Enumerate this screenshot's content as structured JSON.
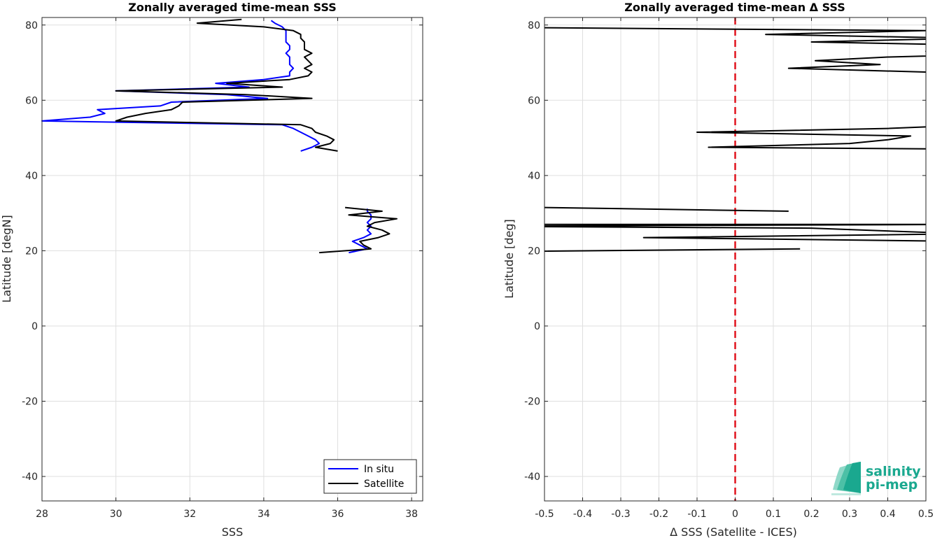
{
  "chart_data": [
    {
      "type": "line",
      "title": "Zonally averaged time-mean SSS",
      "xlabel": "SSS",
      "ylabel": "Latitude [degN]",
      "xlim": [
        28,
        38.3
      ],
      "ylim": [
        -46.5,
        82
      ],
      "xticks": [
        28,
        30,
        32,
        34,
        36,
        38
      ],
      "yticks": [
        -40,
        -20,
        0,
        20,
        40,
        60,
        80
      ],
      "grid": true,
      "legend_position": "bottom-right",
      "series": [
        {
          "name": "In situ",
          "color": "#0000ff",
          "segments": [
            [
              [
                34.2,
                81.2
              ],
              [
                34.3,
                80.5
              ],
              [
                34.5,
                79.5
              ],
              [
                34.6,
                78.5
              ],
              [
                34.6,
                77.5
              ],
              [
                34.6,
                76.5
              ],
              [
                34.6,
                75.5
              ],
              [
                34.7,
                74.5
              ],
              [
                34.7,
                73.5
              ],
              [
                34.6,
                72.5
              ],
              [
                34.7,
                71.5
              ],
              [
                34.7,
                70.5
              ],
              [
                34.7,
                69.5
              ],
              [
                34.8,
                68.5
              ],
              [
                34.7,
                67.5
              ],
              [
                34.7,
                66.5
              ],
              [
                34.0,
                65.5
              ],
              [
                32.7,
                64.5
              ],
              [
                33.6,
                63.5
              ],
              [
                30.0,
                62.5
              ],
              [
                33.0,
                61.5
              ],
              [
                34.1,
                60.5
              ],
              [
                31.5,
                59.5
              ],
              [
                31.2,
                58.5
              ],
              [
                29.5,
                57.5
              ],
              [
                29.7,
                56.5
              ],
              [
                29.3,
                55.5
              ],
              [
                27.6,
                54.5
              ],
              [
                34.5,
                53.5
              ],
              [
                34.8,
                52.5
              ],
              [
                35.0,
                51.5
              ],
              [
                35.2,
                50.5
              ],
              [
                35.4,
                49.5
              ],
              [
                35.5,
                48.5
              ],
              [
                35.3,
                47.5
              ],
              [
                35.0,
                46.5
              ]
            ],
            [
              [
                36.8,
                31.2
              ],
              [
                36.8,
                30.5
              ],
              [
                36.9,
                29.5
              ],
              [
                36.9,
                28.5
              ],
              [
                36.8,
                27.5
              ],
              [
                36.9,
                26.5
              ],
              [
                36.8,
                25.5
              ],
              [
                36.9,
                24.5
              ],
              [
                36.7,
                23.5
              ],
              [
                36.4,
                22.5
              ],
              [
                36.6,
                21.5
              ],
              [
                36.8,
                20.5
              ],
              [
                36.3,
                19.5
              ]
            ]
          ]
        },
        {
          "name": "Satellite",
          "color": "#000000",
          "segments": [
            [
              [
                33.4,
                81.5
              ],
              [
                32.2,
                80.5
              ],
              [
                34.0,
                79.5
              ],
              [
                34.8,
                78.5
              ],
              [
                35.0,
                77.5
              ],
              [
                35.0,
                76.5
              ],
              [
                35.1,
                75.5
              ],
              [
                35.1,
                74.5
              ],
              [
                35.1,
                73.5
              ],
              [
                35.3,
                72.5
              ],
              [
                35.1,
                71.5
              ],
              [
                35.2,
                70.5
              ],
              [
                35.3,
                69.5
              ],
              [
                35.1,
                68.5
              ],
              [
                35.3,
                67.5
              ],
              [
                35.2,
                66.5
              ],
              [
                34.7,
                65.5
              ],
              [
                33.0,
                64.5
              ],
              [
                34.5,
                63.5
              ],
              [
                30.0,
                62.5
              ],
              [
                33.5,
                61.5
              ],
              [
                35.3,
                60.5
              ],
              [
                31.8,
                59.5
              ],
              [
                31.7,
                58.5
              ],
              [
                31.5,
                57.5
              ],
              [
                30.8,
                56.5
              ],
              [
                30.3,
                55.5
              ],
              [
                30.0,
                54.5
              ],
              [
                35.0,
                53.5
              ],
              [
                35.3,
                52.5
              ],
              [
                35.4,
                51.5
              ],
              [
                35.7,
                50.5
              ],
              [
                35.9,
                49.5
              ],
              [
                35.8,
                48.5
              ],
              [
                35.4,
                47.5
              ],
              [
                36.0,
                46.5
              ]
            ],
            [
              [
                36.2,
                31.5
              ],
              [
                37.2,
                30.5
              ],
              [
                36.3,
                29.5
              ],
              [
                37.6,
                28.5
              ],
              [
                37.0,
                27.5
              ],
              [
                36.8,
                26.5
              ],
              [
                37.2,
                25.5
              ],
              [
                37.4,
                24.5
              ],
              [
                37.1,
                23.5
              ],
              [
                36.6,
                22.5
              ],
              [
                36.7,
                21.5
              ],
              [
                36.9,
                20.5
              ],
              [
                35.5,
                19.5
              ]
            ]
          ]
        }
      ]
    },
    {
      "type": "line",
      "title": "Zonally averaged time-mean Δ SSS",
      "xlabel": "Δ SSS (Satellite - ICES)",
      "ylabel": "Latitude [deg]",
      "xlim": [
        -0.5,
        0.5
      ],
      "ylim": [
        -46.5,
        82
      ],
      "xticks": [
        -0.5,
        -0.4,
        -0.3,
        -0.2,
        -0.1,
        0,
        0.1,
        0.2,
        0.3,
        0.4,
        0.5
      ],
      "xticklabels": [
        "-0.5",
        "-0.4",
        "-0.3",
        "-0.2",
        "-0.1",
        "0",
        "0.1",
        "0.2",
        "0.3",
        "0.4",
        "0.5"
      ],
      "yticks": [
        -40,
        -20,
        0,
        20,
        40,
        60,
        80
      ],
      "grid": true,
      "reference_line": {
        "x": 0,
        "color": "#e0141e",
        "style": "dashed"
      },
      "series": [
        {
          "color": "#000000",
          "segments": [
            [
              [
                -0.8,
                79.5
              ],
              [
                0.5,
                78.5
              ],
              [
                0.08,
                77.5
              ],
              [
                0.6,
                76.5
              ],
              [
                0.2,
                75.5
              ],
              [
                0.7,
                74.5
              ],
              [
                0.5,
                73.0
              ],
              [
                0.6,
                72.0
              ],
              [
                0.4,
                71.5
              ],
              [
                0.21,
                70.5
              ],
              [
                0.38,
                69.5
              ],
              [
                0.14,
                68.5
              ],
              [
                0.5,
                67.5
              ]
            ],
            [
              [
                0.6,
                53.5
              ],
              [
                0.52,
                53.0
              ],
              [
                0.4,
                52.5
              ],
              [
                -0.1,
                51.5
              ],
              [
                0.46,
                50.5
              ],
              [
                0.4,
                49.5
              ],
              [
                0.3,
                48.5
              ],
              [
                -0.07,
                47.5
              ],
              [
                0.6,
                47.0
              ]
            ],
            [
              [
                -0.5,
                31.5
              ],
              [
                0.14,
                30.5
              ]
            ],
            [
              [
                -0.7,
                27.0
              ],
              [
                0.6,
                27.0
              ],
              [
                -0.7,
                26.5
              ],
              [
                0.2,
                26.0
              ],
              [
                0.6,
                24.5
              ],
              [
                -0.24,
                23.5
              ],
              [
                0.6,
                22.5
              ],
              [
                0.5,
                22.5
              ]
            ],
            [
              [
                -0.6,
                19.8
              ],
              [
                0.17,
                20.5
              ]
            ]
          ]
        }
      ]
    }
  ],
  "legend": [
    {
      "label": "In situ",
      "color": "#0000ff"
    },
    {
      "label": "Satellite",
      "color": "#000000"
    }
  ],
  "logo": {
    "line1": "salinity",
    "line2": "pi-mep"
  }
}
